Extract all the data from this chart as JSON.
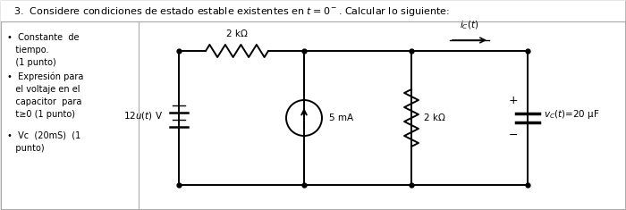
{
  "title": "3.  Considere condiciones de estado estable existentes en $t=0^-$. Calcular lo siguiente:",
  "bg_color": "#f0f0f0",
  "inner_bg": "#ffffff",
  "text_color": "#000000",
  "circuit_color": "#000000",
  "voltage_source_label": "12$u(t)$ V",
  "resistor_top_label": "2 kΩ",
  "current_source_label": "5 mA",
  "resistor_right_label": "2 kΩ",
  "capacitor_label": "20 μF",
  "cap_vc_label": "$v_C(t)$",
  "ic_label": "$i_C(t)$"
}
